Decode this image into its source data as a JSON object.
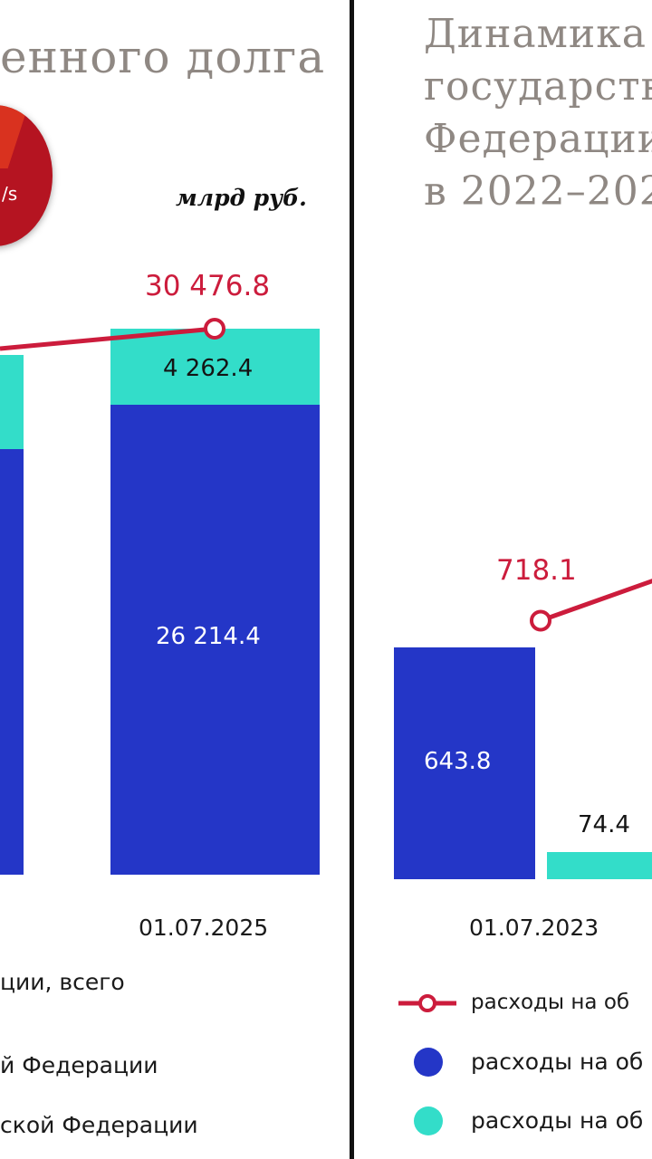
{
  "left": {
    "title_fragment": "енного долга",
    "unit": "млрд руб.",
    "badge_glyph": "/s",
    "legend": [
      "ции, всего",
      "й Федерации",
      "ской Федерации"
    ]
  },
  "right": {
    "title_lines": [
      "Динамика",
      "государств",
      "Федерации",
      "в 2022–202"
    ],
    "legend": [
      "расходы на об",
      "расходы на об",
      "расходы на об"
    ]
  },
  "colors": {
    "total_line": "#cc1c3c",
    "domestic_bar": "#2436c7",
    "external_bar": "#33ddc9",
    "title": "#8f8883"
  },
  "chart_data": [
    {
      "type": "bar",
      "stacked": true,
      "unit": "млрд руб.",
      "categories": [
        "01.07.2025"
      ],
      "series": [
        {
          "values": [
            26214.4
          ]
        },
        {
          "values": [
            4262.4
          ]
        }
      ],
      "totals": [
        30476.8
      ],
      "labels": {
        "domestic": "26 214.4",
        "external": "4 262.4",
        "total": "30 476.8",
        "date": "01.07.2025"
      }
    },
    {
      "type": "bar",
      "categories": [
        "01.07.2023"
      ],
      "series": [
        {
          "values": [
            643.8
          ]
        },
        {
          "values": [
            74.4
          ]
        }
      ],
      "totals": [
        718.1
      ],
      "labels": {
        "domestic": "643.8",
        "external": "74.4",
        "total": "718.1",
        "date": "01.07.2023"
      }
    }
  ]
}
